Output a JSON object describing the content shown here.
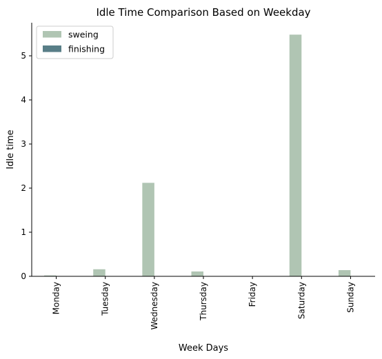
{
  "chart_data": {
    "type": "bar",
    "title": "Idle Time Comparison Based on Weekday",
    "xlabel": "Week Days",
    "ylabel": "Idle time",
    "categories": [
      "Monday",
      "Tuesday",
      "Wednesday",
      "Thursday",
      "Friday",
      "Saturday",
      "Sunday"
    ],
    "series": [
      {
        "name": "sweing",
        "color": "#b0c5b3",
        "values": [
          0.02,
          0.16,
          2.12,
          0.11,
          0.0,
          5.48,
          0.14
        ]
      },
      {
        "name": "finishing",
        "color": "#587e87",
        "values": [
          0.0,
          0.0,
          0.0,
          0.0,
          0.0,
          0.0,
          0.0
        ]
      }
    ],
    "ylim": [
      0,
      5.75
    ],
    "yticks": [
      0,
      1,
      2,
      3,
      4,
      5
    ],
    "grid": false,
    "legend_position": "top-left"
  }
}
